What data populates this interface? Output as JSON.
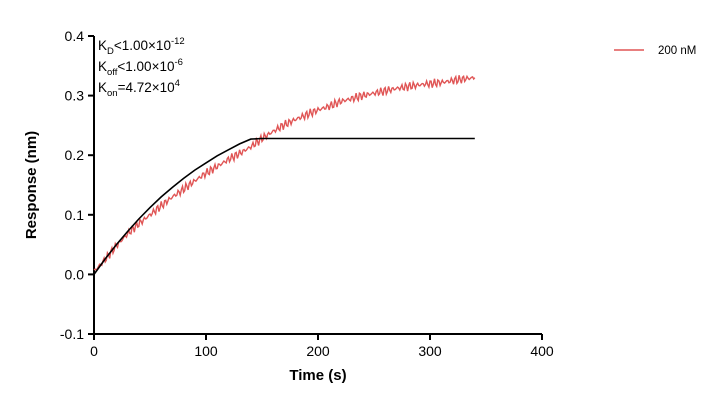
{
  "chart_data": {
    "type": "line",
    "title": "",
    "xlabel": "Time (s)",
    "ylabel": "Response (nm)",
    "xlim": [
      0,
      400
    ],
    "ylim": [
      -0.1,
      0.4
    ],
    "xticks": [
      0,
      100,
      200,
      300,
      400
    ],
    "yticks": [
      -0.1,
      0.0,
      0.1,
      0.2,
      0.3,
      0.4
    ],
    "xtick_labels": [
      "0",
      "100",
      "200",
      "300",
      "400"
    ],
    "ytick_labels": [
      "-0.1",
      "0.0",
      "0.1",
      "0.2",
      "0.3",
      "0.4"
    ],
    "grid": false,
    "legend_position": "top-right",
    "annotations": [
      {
        "main": "K",
        "sub": "D",
        "rest": "<1.00×10",
        "sup": "-12"
      },
      {
        "main": "K",
        "sub": "off",
        "rest": "<1.00×10",
        "sup": "-6"
      },
      {
        "main": "K",
        "sub": "on",
        "rest": "=4.72×10",
        "sup": "4"
      }
    ],
    "series": [
      {
        "name": "200 nM",
        "color": "#e05555",
        "x": [
          0,
          10,
          20,
          30,
          40,
          50,
          60,
          70,
          80,
          90,
          100,
          110,
          120,
          130,
          140,
          150,
          160,
          170,
          180,
          190,
          200,
          210,
          220,
          230,
          240,
          250,
          260,
          270,
          280,
          290,
          300,
          310,
          320,
          330,
          340
        ],
        "y": [
          0.005,
          0.025,
          0.048,
          0.068,
          0.085,
          0.1,
          0.115,
          0.13,
          0.143,
          0.157,
          0.17,
          0.181,
          0.193,
          0.203,
          0.214,
          0.228,
          0.24,
          0.251,
          0.26,
          0.268,
          0.276,
          0.282,
          0.29,
          0.295,
          0.3,
          0.304,
          0.308,
          0.312,
          0.315,
          0.318,
          0.32,
          0.322,
          0.325,
          0.328,
          0.33
        ]
      }
    ],
    "fit": {
      "color": "#000000",
      "x": [
        0,
        10,
        20,
        30,
        40,
        50,
        60,
        70,
        80,
        90,
        100,
        110,
        120,
        130,
        140,
        150,
        200,
        250,
        300,
        340
      ],
      "y": [
        0.0,
        0.026,
        0.05,
        0.072,
        0.093,
        0.112,
        0.13,
        0.146,
        0.161,
        0.175,
        0.187,
        0.199,
        0.209,
        0.219,
        0.227,
        0.228,
        0.228,
        0.228,
        0.228,
        0.228
      ]
    }
  }
}
